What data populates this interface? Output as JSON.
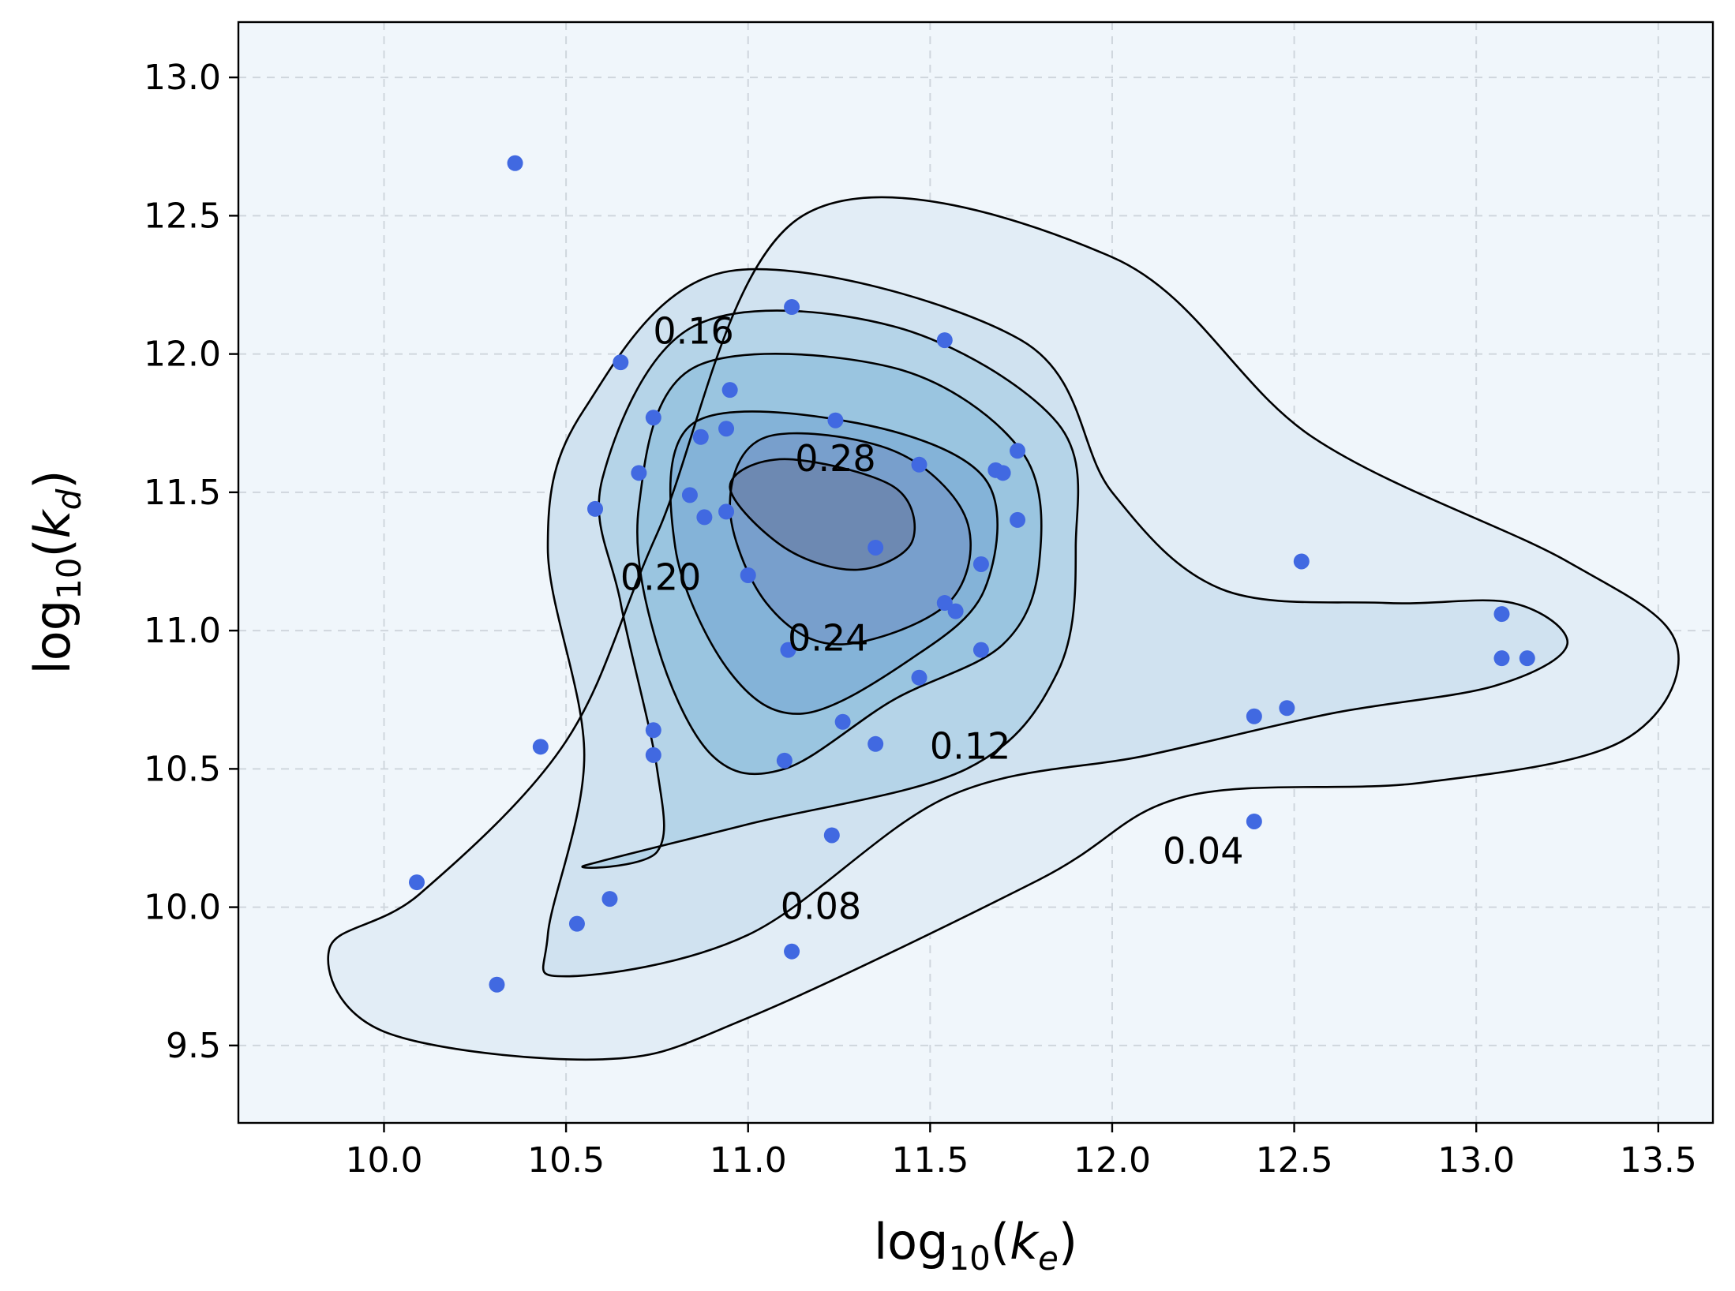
{
  "chart_data": {
    "type": "contour",
    "title": "",
    "xlabel": "log10(k_e)",
    "ylabel": "log10(k_d)",
    "xlim": [
      9.6,
      13.65
    ],
    "ylim": [
      9.22,
      13.2
    ],
    "grid": true,
    "xticks": [
      10.0,
      10.5,
      11.0,
      11.5,
      12.0,
      12.5,
      13.0,
      13.5
    ],
    "yticks": [
      9.5,
      10.0,
      10.5,
      11.0,
      11.5,
      12.0,
      12.5,
      13.0
    ],
    "xtick_labels": [
      "10.0",
      "10.5",
      "11.0",
      "11.5",
      "12.0",
      "12.5",
      "13.0",
      "13.5"
    ],
    "ytick_labels": [
      "9.5",
      "10.0",
      "10.5",
      "11.0",
      "11.5",
      "12.0",
      "12.5",
      "13.0"
    ],
    "colors": {
      "background": "#f0f6fb",
      "points": "#4169e1",
      "contour_line": "#000000",
      "fills": [
        "#e2edf6",
        "#d0e2f0",
        "#b5d4e8",
        "#9ac5e0",
        "#84b3d8",
        "#789fcc",
        "#6d89b2"
      ]
    },
    "contour_levels": [
      {
        "level": 0.04,
        "label": "0.04",
        "path": [
          [
            10.1,
            10.05
          ],
          [
            10.5,
            10.6
          ],
          [
            10.75,
            11.35
          ],
          [
            11.15,
            12.5
          ],
          [
            12.0,
            12.35
          ],
          [
            12.55,
            11.7
          ],
          [
            13.25,
            11.25
          ],
          [
            13.55,
            10.95
          ],
          [
            13.4,
            10.6
          ],
          [
            12.85,
            10.45
          ],
          [
            12.2,
            10.4
          ],
          [
            11.8,
            10.1
          ],
          [
            11.0,
            9.6
          ],
          [
            10.6,
            9.45
          ],
          [
            10.0,
            9.55
          ],
          [
            9.85,
            9.85
          ]
        ],
        "label_at": [
          12.25,
          10.18
        ]
      },
      {
        "level": 0.08,
        "label": "0.08",
        "path": [
          [
            10.45,
            9.9
          ],
          [
            10.55,
            10.55
          ],
          [
            10.45,
            11.3
          ],
          [
            10.55,
            11.8
          ],
          [
            10.95,
            12.3
          ],
          [
            11.75,
            12.05
          ],
          [
            12.0,
            11.5
          ],
          [
            12.3,
            11.15
          ],
          [
            12.75,
            11.1
          ],
          [
            13.1,
            11.1
          ],
          [
            13.25,
            10.95
          ],
          [
            13.05,
            10.8
          ],
          [
            12.6,
            10.7
          ],
          [
            12.1,
            10.55
          ],
          [
            11.55,
            10.4
          ],
          [
            11.0,
            9.9
          ],
          [
            10.5,
            9.75
          ]
        ],
        "label_at": [
          11.2,
          9.98
        ]
      },
      {
        "level": 0.12,
        "label": "0.12",
        "path": [
          [
            10.75,
            10.2
          ],
          [
            10.75,
            10.5
          ],
          [
            10.65,
            11.1
          ],
          [
            10.6,
            11.55
          ],
          [
            10.85,
            12.1
          ],
          [
            11.4,
            12.1
          ],
          [
            11.85,
            11.75
          ],
          [
            11.9,
            11.3
          ],
          [
            11.85,
            10.85
          ],
          [
            11.6,
            10.5
          ],
          [
            11.0,
            10.3
          ],
          [
            10.55,
            10.15
          ]
        ],
        "label_at": [
          11.61,
          10.56
        ]
      },
      {
        "level": 0.16,
        "label": "0.16",
        "path": [
          [
            10.9,
            10.55
          ],
          [
            10.75,
            10.95
          ],
          [
            10.7,
            11.45
          ],
          [
            10.85,
            11.95
          ],
          [
            11.4,
            11.95
          ],
          [
            11.75,
            11.65
          ],
          [
            11.8,
            11.25
          ],
          [
            11.7,
            10.95
          ],
          [
            11.4,
            10.75
          ],
          [
            11.1,
            10.5
          ]
        ],
        "label_at": [
          10.85,
          12.06
        ]
      },
      {
        "level": 0.2,
        "label": "0.20",
        "path": [
          [
            10.95,
            10.85
          ],
          [
            10.8,
            11.3
          ],
          [
            10.85,
            11.75
          ],
          [
            11.3,
            11.75
          ],
          [
            11.65,
            11.55
          ],
          [
            11.65,
            11.15
          ],
          [
            11.45,
            10.9
          ],
          [
            11.15,
            10.7
          ]
        ],
        "label_at": [
          10.76,
          11.17
        ]
      },
      {
        "level": 0.24,
        "label": "0.24",
        "path": [
          [
            11.05,
            11.1
          ],
          [
            10.95,
            11.45
          ],
          [
            11.05,
            11.7
          ],
          [
            11.4,
            11.65
          ],
          [
            11.6,
            11.4
          ],
          [
            11.55,
            11.1
          ],
          [
            11.25,
            10.95
          ]
        ],
        "label_at": [
          11.22,
          10.95
        ]
      },
      {
        "level": 0.28,
        "label": "0.28",
        "path": [
          [
            11.1,
            11.3
          ],
          [
            10.95,
            11.52
          ],
          [
            11.1,
            11.62
          ],
          [
            11.4,
            11.52
          ],
          [
            11.45,
            11.32
          ],
          [
            11.3,
            11.22
          ]
        ],
        "label_at": [
          11.24,
          11.6
        ]
      }
    ],
    "points": [
      [
        10.36,
        12.69
      ],
      [
        11.12,
        12.17
      ],
      [
        11.54,
        12.05
      ],
      [
        10.65,
        11.97
      ],
      [
        10.95,
        11.87
      ],
      [
        10.74,
        11.77
      ],
      [
        11.24,
        11.76
      ],
      [
        10.87,
        11.7
      ],
      [
        10.94,
        11.73
      ],
      [
        11.47,
        11.6
      ],
      [
        11.74,
        11.65
      ],
      [
        11.68,
        11.58
      ],
      [
        11.7,
        11.57
      ],
      [
        10.7,
        11.57
      ],
      [
        10.84,
        11.49
      ],
      [
        10.58,
        11.44
      ],
      [
        10.94,
        11.43
      ],
      [
        10.88,
        11.41
      ],
      [
        11.74,
        11.4
      ],
      [
        11.35,
        11.3
      ],
      [
        12.52,
        11.25
      ],
      [
        11.64,
        11.24
      ],
      [
        11.0,
        11.2
      ],
      [
        11.54,
        11.1
      ],
      [
        11.57,
        11.07
      ],
      [
        13.07,
        11.06
      ],
      [
        11.11,
        10.93
      ],
      [
        11.64,
        10.93
      ],
      [
        13.07,
        10.9
      ],
      [
        13.14,
        10.9
      ],
      [
        11.47,
        10.83
      ],
      [
        12.48,
        10.72
      ],
      [
        12.39,
        10.69
      ],
      [
        11.26,
        10.67
      ],
      [
        10.74,
        10.64
      ],
      [
        10.43,
        10.58
      ],
      [
        11.35,
        10.59
      ],
      [
        10.74,
        10.55
      ],
      [
        11.1,
        10.53
      ],
      [
        12.39,
        10.31
      ],
      [
        11.23,
        10.26
      ],
      [
        10.09,
        10.09
      ],
      [
        10.62,
        10.03
      ],
      [
        10.53,
        9.94
      ],
      [
        11.12,
        9.84
      ],
      [
        10.31,
        9.72
      ]
    ]
  }
}
